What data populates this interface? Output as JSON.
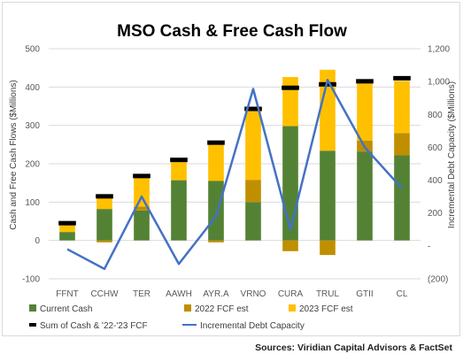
{
  "chart_data": {
    "type": "bar",
    "title": "MSO Cash & Free Cash Flow",
    "ylabel": "Cash and Free Cash Flows ($Millions)",
    "y2label": "Incremental Debt Capacity ($Millions)",
    "ylim": [
      -100,
      500
    ],
    "y_ticks": [
      "-100",
      "0",
      "100",
      "200",
      "300",
      "400",
      "500"
    ],
    "y2lim": [
      -200,
      1200
    ],
    "y2_ticks": [
      "(200)",
      "-",
      "200",
      "400",
      "600",
      "800",
      "1,000",
      "1,200"
    ],
    "categories": [
      "FFNT",
      "CCHW",
      "TER",
      "AAWH",
      "AYR.A",
      "VRNO",
      "CURA",
      "TRUL",
      "GTII",
      "CL"
    ],
    "series": [
      {
        "name": "Current Cash",
        "kind": "stacked-bar",
        "color": "#548235",
        "values": [
          22,
          82,
          78,
          157,
          155,
          100,
          298,
          234,
          232,
          222
        ]
      },
      {
        "name": "2022 FCF est",
        "kind": "stacked-bar",
        "color": "#bf8f00",
        "values": [
          0,
          -5,
          10,
          0,
          -5,
          58,
          -28,
          -38,
          28,
          58
        ]
      },
      {
        "name": "2023 FCF est",
        "kind": "stacked-bar",
        "color": "#ffc000",
        "values": [
          23,
          35,
          76,
          50,
          100,
          183,
          128,
          211,
          150,
          136
        ]
      },
      {
        "name": "Sum of Cash & '22-'23 FCF",
        "kind": "marker",
        "color": "#000000",
        "values": [
          45,
          115,
          168,
          210,
          255,
          343,
          398,
          407,
          415,
          423
        ]
      },
      {
        "name": "Incremental Debt Capacity",
        "kind": "line",
        "axis": "secondary",
        "color": "#4472c4",
        "values": [
          -20,
          -140,
          300,
          -110,
          180,
          955,
          100,
          1010,
          600,
          350
        ]
      }
    ],
    "legend_placement": "bottom",
    "gridlines": true
  },
  "source": "Sources: Viridian Capital Advisors & FactSet"
}
